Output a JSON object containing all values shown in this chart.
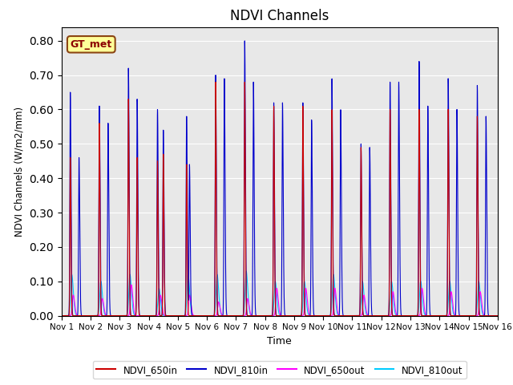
{
  "title": "NDVI Channels",
  "xlabel": "Time",
  "ylabel": "NDVI Channels (W/m2/mm)",
  "ylim": [
    0.0,
    0.84
  ],
  "xlim_days": [
    0,
    15
  ],
  "tick_labels": [
    "Nov 1",
    "Nov 2",
    "Nov 3",
    "Nov 4",
    "Nov 5",
    "Nov 6",
    "Nov 7",
    "Nov 8",
    "Nov 9",
    "Nov 10",
    "Nov 11",
    "Nov 12",
    "Nov 13",
    "Nov 14",
    "Nov 15",
    "Nov 16"
  ],
  "colors": {
    "NDVI_650in": "#cc0000",
    "NDVI_810in": "#0000cc",
    "NDVI_650out": "#ff00ff",
    "NDVI_810out": "#00ccff"
  },
  "annotation_text": "GT_met",
  "background_color": "#e8e8e8",
  "spike_peaks_810in": [
    [
      0.3,
      0.65
    ],
    [
      0.6,
      0.46
    ],
    [
      1.3,
      0.61
    ],
    [
      1.6,
      0.56
    ],
    [
      2.3,
      0.72
    ],
    [
      2.6,
      0.63
    ],
    [
      3.3,
      0.6
    ],
    [
      3.5,
      0.54
    ],
    [
      4.3,
      0.58
    ],
    [
      4.4,
      0.44
    ],
    [
      5.3,
      0.7
    ],
    [
      5.6,
      0.69
    ],
    [
      6.3,
      0.8
    ],
    [
      6.6,
      0.68
    ],
    [
      7.3,
      0.62
    ],
    [
      7.6,
      0.62
    ],
    [
      8.3,
      0.62
    ],
    [
      8.6,
      0.57
    ],
    [
      9.3,
      0.69
    ],
    [
      9.6,
      0.6
    ],
    [
      10.3,
      0.5
    ],
    [
      10.6,
      0.49
    ],
    [
      11.3,
      0.68
    ],
    [
      11.6,
      0.68
    ],
    [
      12.3,
      0.74
    ],
    [
      12.6,
      0.61
    ],
    [
      13.3,
      0.69
    ],
    [
      13.6,
      0.6
    ],
    [
      14.3,
      0.67
    ],
    [
      14.6,
      0.58
    ]
  ],
  "spike_peaks_650in": [
    [
      0.3,
      0.46
    ],
    [
      1.3,
      0.56
    ],
    [
      2.3,
      0.63
    ],
    [
      2.6,
      0.46
    ],
    [
      3.3,
      0.45
    ],
    [
      3.5,
      0.47
    ],
    [
      4.3,
      0.44
    ],
    [
      5.3,
      0.68
    ],
    [
      6.3,
      0.68
    ],
    [
      7.3,
      0.61
    ],
    [
      8.3,
      0.61
    ],
    [
      9.3,
      0.6
    ],
    [
      10.3,
      0.49
    ],
    [
      11.3,
      0.6
    ],
    [
      12.3,
      0.6
    ],
    [
      13.3,
      0.6
    ],
    [
      14.3,
      0.58
    ]
  ],
  "spike_peaks_810out": [
    [
      0.35,
      0.12
    ],
    [
      1.35,
      0.1
    ],
    [
      2.35,
      0.12
    ],
    [
      3.35,
      0.08
    ],
    [
      4.35,
      0.12
    ],
    [
      5.35,
      0.12
    ],
    [
      6.35,
      0.13
    ],
    [
      7.35,
      0.1
    ],
    [
      8.35,
      0.1
    ],
    [
      9.35,
      0.12
    ],
    [
      10.35,
      0.1
    ],
    [
      11.35,
      0.1
    ],
    [
      12.35,
      0.1
    ],
    [
      13.35,
      0.1
    ],
    [
      14.35,
      0.1
    ]
  ],
  "spike_peaks_650out": [
    [
      0.4,
      0.06
    ],
    [
      1.4,
      0.05
    ],
    [
      2.4,
      0.09
    ],
    [
      3.4,
      0.06
    ],
    [
      4.4,
      0.06
    ],
    [
      5.4,
      0.04
    ],
    [
      6.4,
      0.05
    ],
    [
      7.4,
      0.08
    ],
    [
      8.4,
      0.08
    ],
    [
      9.4,
      0.08
    ],
    [
      10.4,
      0.06
    ],
    [
      11.4,
      0.07
    ],
    [
      12.4,
      0.08
    ],
    [
      13.4,
      0.07
    ],
    [
      14.4,
      0.07
    ]
  ],
  "figsize": [
    6.4,
    4.8
  ],
  "dpi": 100
}
